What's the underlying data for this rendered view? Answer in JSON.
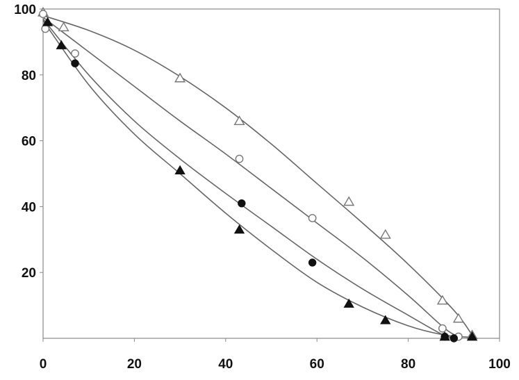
{
  "chart_data": {
    "type": "scatter",
    "xlim": [
      0,
      100
    ],
    "ylim": [
      0,
      100
    ],
    "x_ticks": [
      "0",
      "20",
      "40",
      "60",
      "80",
      "100"
    ],
    "y_ticks": [
      "20",
      "40",
      "60",
      "80",
      "100"
    ],
    "grid": false,
    "legend": "none",
    "title": "",
    "xlabel": "",
    "ylabel": "",
    "series": [
      {
        "marker": "open-triangle",
        "color": "#777777",
        "points": [
          [
            0,
            99
          ],
          [
            4.5,
            94.5
          ],
          [
            30,
            79
          ],
          [
            43,
            66
          ],
          [
            67,
            41.5
          ],
          [
            75,
            31.5
          ],
          [
            87.5,
            11.5
          ],
          [
            91,
            6
          ],
          [
            94,
            1
          ]
        ],
        "curve": [
          [
            0,
            98
          ],
          [
            10,
            93.5
          ],
          [
            20,
            87.5
          ],
          [
            30,
            79.5
          ],
          [
            40,
            70
          ],
          [
            50,
            59
          ],
          [
            60,
            47
          ],
          [
            70,
            35
          ],
          [
            80,
            22.5
          ],
          [
            90,
            8.5
          ],
          [
            94,
            1
          ]
        ]
      },
      {
        "marker": "open-circle",
        "color": "#777777",
        "points": [
          [
            0,
            98.5
          ],
          [
            0.5,
            94
          ],
          [
            7,
            86.5
          ],
          [
            43,
            54.5
          ],
          [
            59,
            36.5
          ],
          [
            87.5,
            3
          ],
          [
            91,
            0.5
          ]
        ],
        "curve": [
          [
            0,
            97.5
          ],
          [
            10,
            87
          ],
          [
            20,
            76.5
          ],
          [
            30,
            66
          ],
          [
            40,
            56
          ],
          [
            50,
            45.5
          ],
          [
            60,
            35
          ],
          [
            70,
            24.5
          ],
          [
            80,
            13
          ],
          [
            88,
            3
          ],
          [
            91,
            0.5
          ]
        ]
      },
      {
        "marker": "filled-circle",
        "color": "#111111",
        "points": [
          [
            7,
            83.5
          ],
          [
            43.5,
            41
          ],
          [
            59,
            23
          ],
          [
            88,
            0.5
          ],
          [
            90,
            0
          ]
        ],
        "curve": [
          [
            0,
            97
          ],
          [
            10,
            80
          ],
          [
            20,
            66
          ],
          [
            30,
            54.5
          ],
          [
            40,
            44
          ],
          [
            50,
            34
          ],
          [
            60,
            24
          ],
          [
            70,
            15
          ],
          [
            80,
            7
          ],
          [
            87,
            1.5
          ],
          [
            90,
            0
          ]
        ]
      },
      {
        "marker": "filled-triangle",
        "color": "#111111",
        "points": [
          [
            1,
            96
          ],
          [
            4,
            89
          ],
          [
            30,
            51
          ],
          [
            43,
            33
          ],
          [
            67,
            10.5
          ],
          [
            75,
            5.5
          ],
          [
            88,
            0.5
          ],
          [
            94,
            0.5
          ]
        ],
        "curve": [
          [
            0,
            96.5
          ],
          [
            10,
            77
          ],
          [
            20,
            62
          ],
          [
            30,
            50
          ],
          [
            40,
            38
          ],
          [
            50,
            27
          ],
          [
            60,
            17
          ],
          [
            70,
            9.5
          ],
          [
            80,
            3.8
          ],
          [
            88,
            1
          ],
          [
            94,
            0.3
          ]
        ]
      }
    ]
  }
}
